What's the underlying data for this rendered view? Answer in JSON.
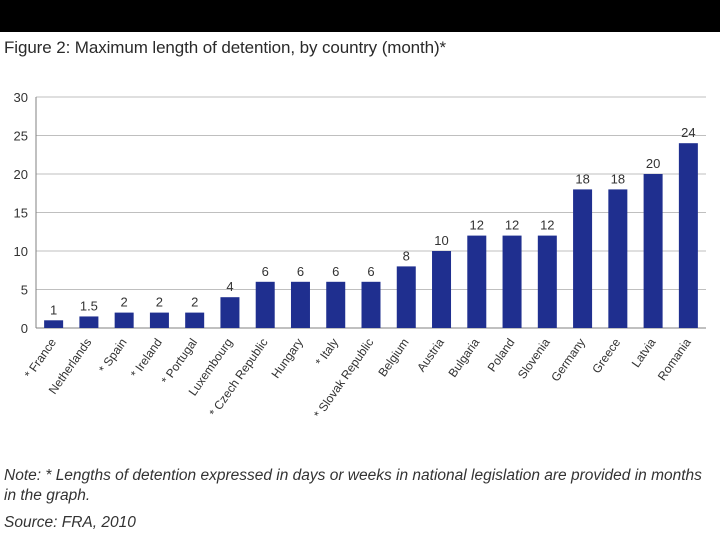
{
  "figure": {
    "title": "Figure 2: Maximum length of detention, by country (month)*",
    "note": "Note: * Lengths of detention expressed in days or weeks in national legislation are provided in months in the graph.",
    "source": "Source: FRA, 2010"
  },
  "colors": {
    "bar": "#1F2F8F",
    "axis": "#808080",
    "grid": "#BFBFBF",
    "text": "#333333"
  },
  "chart_data": {
    "type": "bar",
    "title": "Figure 2: Maximum length of detention, by country (month)*",
    "xlabel": "",
    "ylabel": "",
    "ylim": [
      0,
      30
    ],
    "yticks": [
      0,
      5,
      10,
      15,
      20,
      25,
      30
    ],
    "grid": true,
    "categories": [
      "* France",
      "Netherlands",
      "* Spain",
      "* Ireland",
      "* Portugal",
      "Luxembourg",
      "* Czech Republic",
      "Hungary",
      "* Italy",
      "* Slovak Republic",
      "Belgium",
      "Austria",
      "Bulgaria",
      "Poland",
      "Slovenia",
      "Germany",
      "Greece",
      "Latvia",
      "Romania"
    ],
    "values": [
      1,
      1.5,
      2,
      2,
      2,
      4,
      6,
      6,
      6,
      6,
      8,
      10,
      12,
      12,
      12,
      18,
      18,
      20,
      24
    ],
    "value_labels": [
      "1",
      "1.5",
      "2",
      "2",
      "2",
      "4",
      "6",
      "6",
      "6",
      "6",
      "8",
      "10",
      "12",
      "12",
      "12",
      "18",
      "18",
      "20",
      "24"
    ]
  }
}
